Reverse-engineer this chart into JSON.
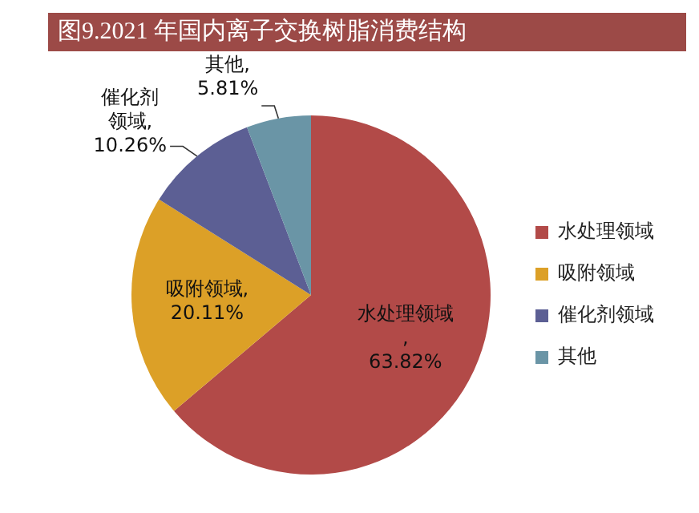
{
  "chart_data": {
    "type": "pie",
    "title": "图9.2021 年国内离子交换树脂消费结构",
    "categories": [
      "水处理领域",
      "吸附领域",
      "催化剂领域",
      "其他"
    ],
    "values": [
      63.82,
      20.11,
      10.26,
      5.81
    ],
    "colors": [
      "#b24a48",
      "#dca027",
      "#5c5f94",
      "#6a95a6"
    ],
    "value_labels": [
      "水处理领域, 63.82%",
      "吸附领域, 20.11%",
      "催化剂领域, 10.26%",
      "其他, 5.81%"
    ],
    "legend": "right"
  }
}
